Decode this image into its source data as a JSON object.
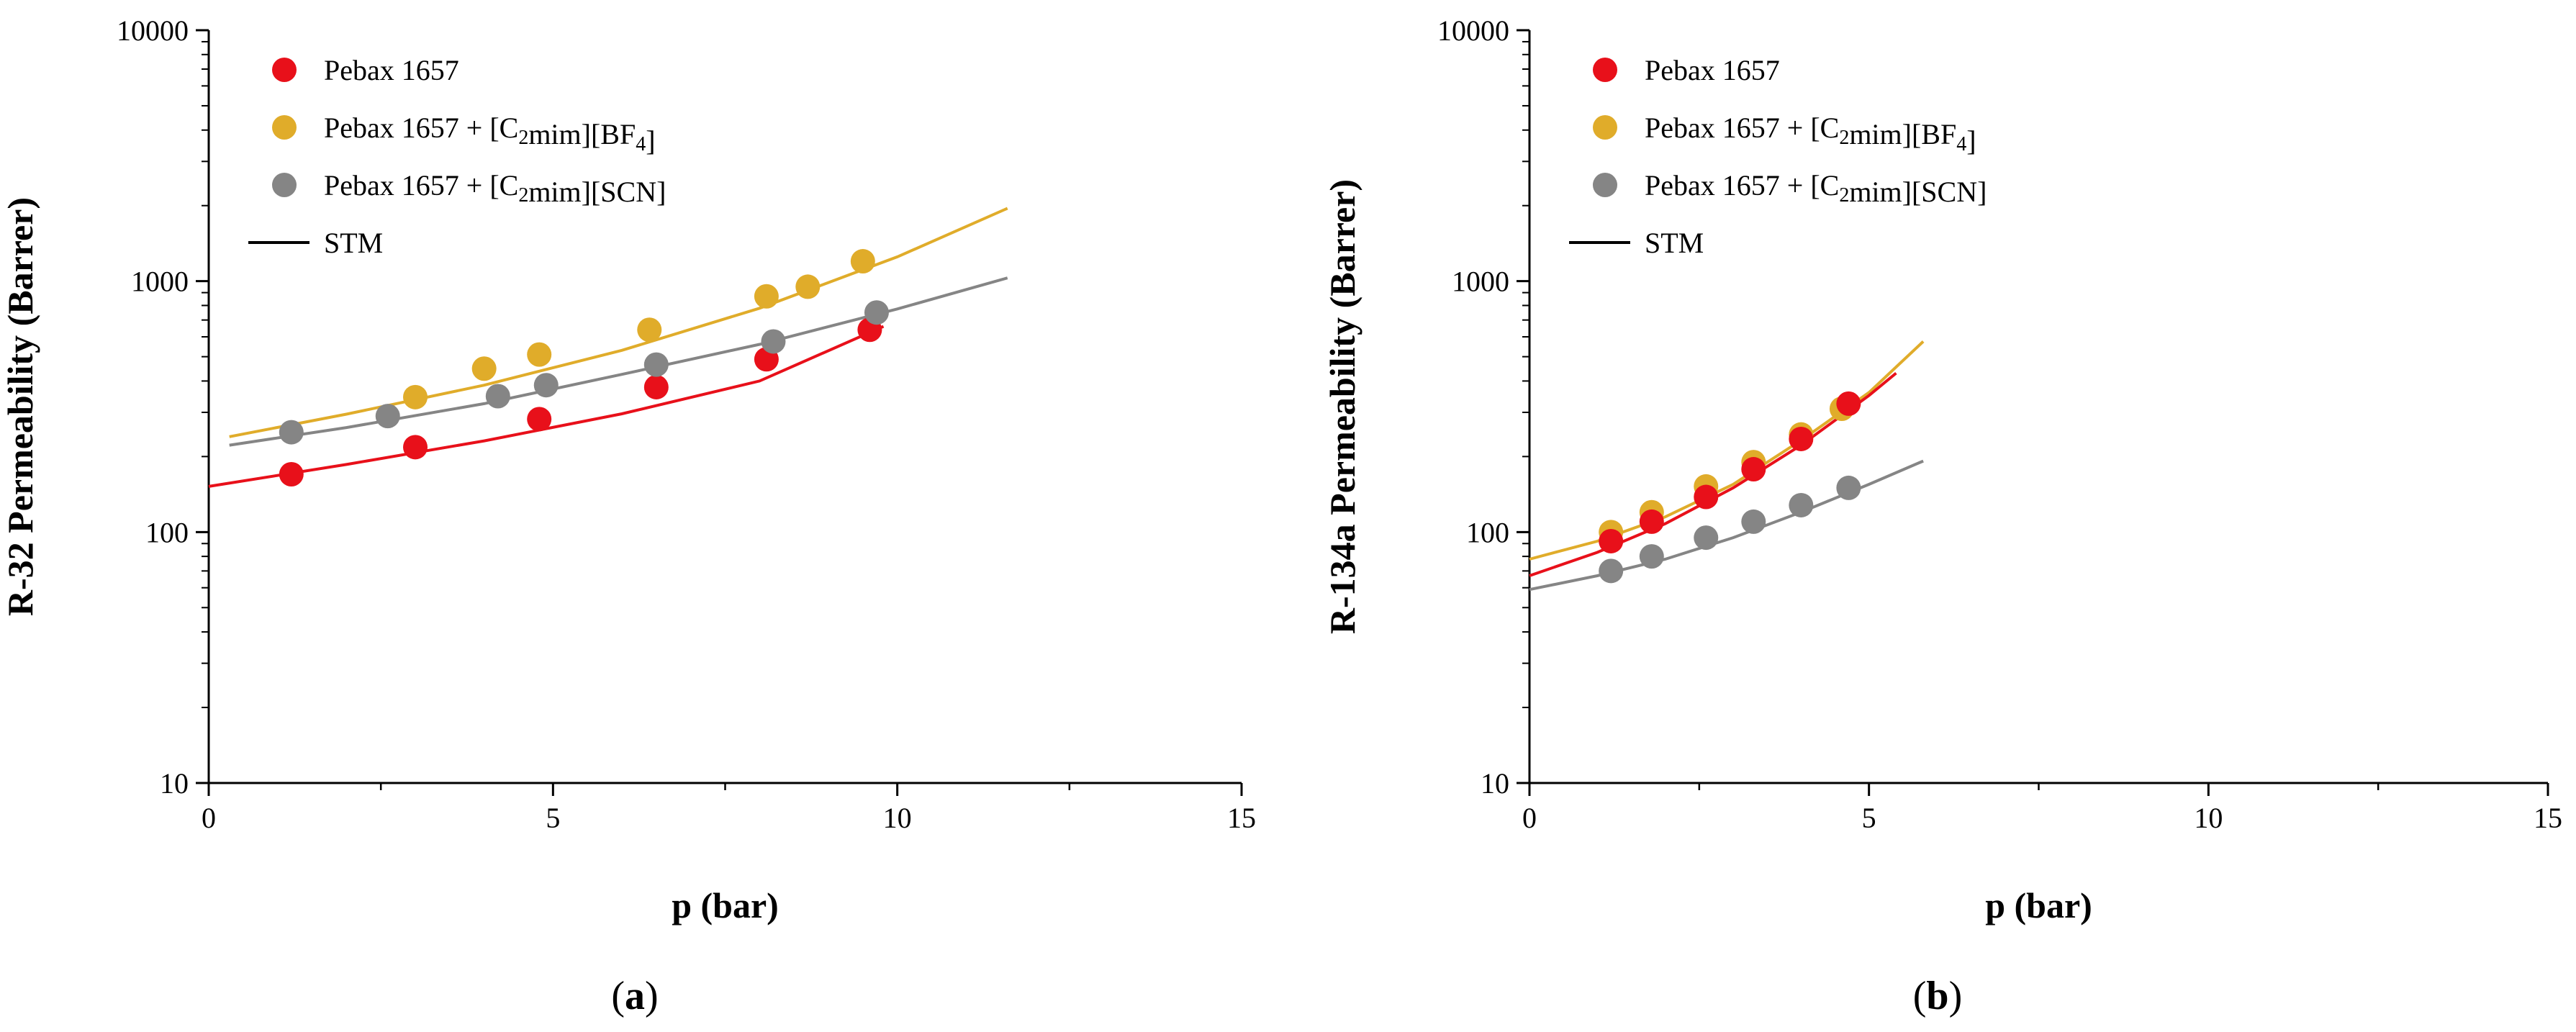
{
  "chart_data": [
    {
      "type": "scatter",
      "panel_label": "(a)",
      "panel_letter": "a",
      "xlabel": "p (bar)",
      "ylabel": "R-32 Permeability (Barrer)",
      "xlim": [
        0,
        15
      ],
      "ylim": [
        10,
        10000
      ],
      "yscale": "log",
      "xticks": [
        0,
        5,
        10,
        15
      ],
      "yticks": [
        10,
        100,
        1000,
        10000
      ],
      "legend_position": "top-left",
      "legend": [
        {
          "label": "Pebax 1657",
          "label_parts": [
            {
              "t": "Pebax 1657"
            }
          ],
          "color": "#e8101a",
          "kind": "marker"
        },
        {
          "label": "Pebax 1657 + [C2mim][BF4]",
          "label_parts": [
            {
              "t": "Pebax 1657 + [C"
            },
            {
              "t": "2",
              "sub": true
            },
            {
              "t": "mim][BF"
            },
            {
              "t": "4",
              "sub": true
            },
            {
              "t": "]"
            }
          ],
          "color": "#e0ac2a",
          "kind": "marker"
        },
        {
          "label": "Pebax 1657 + [C2mim][SCN]",
          "label_parts": [
            {
              "t": "Pebax 1657 + [C"
            },
            {
              "t": "2",
              "sub": true
            },
            {
              "t": "mim][SCN]"
            }
          ],
          "color": "#858585",
          "kind": "marker"
        },
        {
          "label": "STM",
          "label_parts": [
            {
              "t": "STM"
            }
          ],
          "color": "#000000",
          "kind": "line"
        }
      ],
      "series": [
        {
          "name": "Pebax 1657",
          "color": "#e8101a",
          "points": [
            [
              1.2,
              170
            ],
            [
              3.0,
              218
            ],
            [
              4.8,
              282
            ],
            [
              6.5,
              378
            ],
            [
              8.1,
              488
            ],
            [
              9.6,
              640
            ]
          ],
          "fit": [
            [
              0,
              152
            ],
            [
              2,
              186
            ],
            [
              4,
              231
            ],
            [
              6,
              296
            ],
            [
              8,
              400
            ],
            [
              9.8,
              660
            ]
          ]
        },
        {
          "name": "Pebax 1657 + [C2mim][BF4]",
          "color": "#e0ac2a",
          "points": [
            [
              3.0,
              345
            ],
            [
              4.0,
              448
            ],
            [
              4.8,
              510
            ],
            [
              6.4,
              640
            ],
            [
              8.1,
              870
            ],
            [
              8.7,
              950
            ],
            [
              9.5,
              1200
            ]
          ],
          "fit": [
            [
              0.3,
              240
            ],
            [
              2,
              295
            ],
            [
              4,
              385
            ],
            [
              6,
              530
            ],
            [
              8,
              780
            ],
            [
              10,
              1250
            ],
            [
              11.6,
              1950
            ]
          ]
        },
        {
          "name": "Pebax 1657 + [C2mim][SCN]",
          "color": "#858585",
          "points": [
            [
              1.2,
              250
            ],
            [
              2.6,
              290
            ],
            [
              4.2,
              348
            ],
            [
              4.9,
              385
            ],
            [
              6.5,
              465
            ],
            [
              8.2,
              575
            ],
            [
              9.7,
              750
            ]
          ],
          "fit": [
            [
              0.3,
              222
            ],
            [
              2,
              261
            ],
            [
              4,
              325
            ],
            [
              6,
              425
            ],
            [
              8,
              560
            ],
            [
              10,
              775
            ],
            [
              11.6,
              1030
            ]
          ]
        }
      ]
    },
    {
      "type": "scatter",
      "panel_label": "(b)",
      "panel_letter": "b",
      "xlabel": "p (bar)",
      "ylabel": "R-134a Permeability (Barrer)",
      "xlim": [
        0,
        15
      ],
      "ylim": [
        10,
        10000
      ],
      "yscale": "log",
      "xticks": [
        0,
        5,
        10,
        15
      ],
      "yticks": [
        10,
        100,
        1000,
        10000
      ],
      "legend_position": "top-left",
      "legend": [
        {
          "label": "Pebax 1657",
          "label_parts": [
            {
              "t": "Pebax 1657"
            }
          ],
          "color": "#e8101a",
          "kind": "marker"
        },
        {
          "label": "Pebax 1657 + [C2mim][BF4]",
          "label_parts": [
            {
              "t": "Pebax 1657 + [C"
            },
            {
              "t": "2",
              "sub": true
            },
            {
              "t": "mim][BF"
            },
            {
              "t": "4",
              "sub": true
            },
            {
              "t": "]"
            }
          ],
          "color": "#e0ac2a",
          "kind": "marker"
        },
        {
          "label": "Pebax 1657 + [C2mim][SCN]",
          "label_parts": [
            {
              "t": "Pebax 1657 + [C"
            },
            {
              "t": "2",
              "sub": true
            },
            {
              "t": "mim][SCN]"
            }
          ],
          "color": "#858585",
          "kind": "marker"
        },
        {
          "label": "STM",
          "label_parts": [
            {
              "t": "STM"
            }
          ],
          "color": "#000000",
          "kind": "line"
        }
      ],
      "series": [
        {
          "name": "Pebax 1657 + [C2mim][BF4]",
          "color": "#e0ac2a",
          "points": [
            [
              1.2,
              100
            ],
            [
              1.8,
              120
            ],
            [
              2.6,
              152
            ],
            [
              3.3,
              190
            ],
            [
              4.0,
              245
            ],
            [
              4.6,
              310
            ]
          ],
          "fit": [
            [
              0,
              78
            ],
            [
              1,
              92
            ],
            [
              2,
              115
            ],
            [
              3,
              155
            ],
            [
              4,
              232
            ],
            [
              5,
              360
            ],
            [
              5.8,
              575
            ]
          ]
        },
        {
          "name": "Pebax 1657",
          "color": "#e8101a",
          "points": [
            [
              1.2,
              92
            ],
            [
              1.8,
              110
            ],
            [
              2.6,
              138
            ],
            [
              3.3,
              178
            ],
            [
              4.0,
              235
            ],
            [
              4.7,
              325
            ]
          ],
          "fit": [
            [
              0,
              67
            ],
            [
              1,
              83
            ],
            [
              2,
              108
            ],
            [
              3,
              150
            ],
            [
              4,
              222
            ],
            [
              5,
              350
            ],
            [
              5.4,
              430
            ]
          ]
        },
        {
          "name": "Pebax 1657 + [C2mim][SCN]",
          "color": "#858585",
          "points": [
            [
              1.2,
              70
            ],
            [
              1.8,
              80
            ],
            [
              2.6,
              95
            ],
            [
              3.3,
              110
            ],
            [
              4.0,
              128
            ],
            [
              4.7,
              150
            ]
          ],
          "fit": [
            [
              0,
              59
            ],
            [
              1,
              67
            ],
            [
              2,
              78
            ],
            [
              3,
              95
            ],
            [
              4,
              120
            ],
            [
              5,
              155
            ],
            [
              5.8,
              192
            ]
          ]
        }
      ]
    }
  ]
}
